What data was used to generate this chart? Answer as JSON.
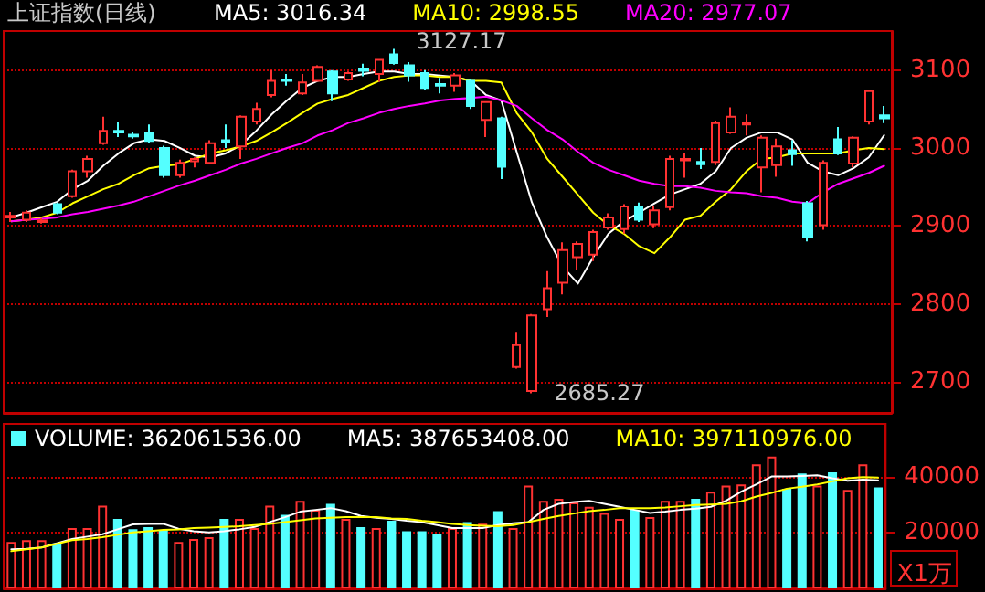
{
  "chart_data": [
    {
      "type": "candlestick",
      "title": "上证指数(日线)",
      "categories": [
        null,
        null,
        null,
        null,
        null,
        null,
        null,
        null,
        null,
        null,
        null,
        null,
        null,
        null,
        null,
        null,
        null,
        null,
        null,
        null,
        null,
        null,
        null,
        null,
        null,
        null,
        null,
        null,
        null,
        null,
        null,
        null,
        null,
        null,
        null,
        null,
        null,
        null,
        null,
        null,
        null,
        null,
        null,
        null,
        null,
        null,
        null,
        null,
        null,
        null,
        null,
        null,
        null,
        null,
        null,
        null,
        null,
        null
      ],
      "ohlc": [
        [
          2911,
          2918,
          2905,
          2913
        ],
        [
          2908,
          2920,
          2905,
          2917
        ],
        [
          2905,
          2910,
          2903,
          2907
        ],
        [
          2928,
          2930,
          2915,
          2917
        ],
        [
          2938,
          2972,
          2936,
          2970
        ],
        [
          2970,
          2990,
          2962,
          2986
        ],
        [
          3006,
          3040,
          3004,
          3022
        ],
        [
          3022,
          3033,
          3014,
          3020
        ],
        [
          3017,
          3020,
          3012,
          3015
        ],
        [
          3020,
          3030,
          3007,
          3009
        ],
        [
          3000,
          3003,
          2962,
          2965
        ],
        [
          2965,
          2985,
          2962,
          2981
        ],
        [
          2983,
          2988,
          2975,
          2986
        ],
        [
          2981,
          3010,
          2980,
          3006
        ],
        [
          3010,
          3030,
          3000,
          3008
        ],
        [
          3002,
          3042,
          2986,
          3040
        ],
        [
          3034,
          3058,
          3030,
          3050
        ],
        [
          3068,
          3100,
          3065,
          3086
        ],
        [
          3088,
          3095,
          3080,
          3086
        ],
        [
          3070,
          3095,
          3068,
          3084
        ],
        [
          3086,
          3106,
          3085,
          3104
        ],
        [
          3098,
          3100,
          3060,
          3070
        ],
        [
          3088,
          3098,
          3086,
          3096
        ],
        [
          3102,
          3108,
          3092,
          3099
        ],
        [
          3095,
          3113,
          3085,
          3113
        ],
        [
          3120,
          3127.17,
          3107,
          3109
        ],
        [
          3106,
          3110,
          3085,
          3093
        ],
        [
          3096,
          3100,
          3075,
          3077
        ],
        [
          3082,
          3090,
          3070,
          3080
        ],
        [
          3080,
          3096,
          3072,
          3093
        ],
        [
          3086,
          3088,
          3050,
          3054
        ],
        [
          3036,
          3060,
          3014,
          3059
        ],
        [
          3038,
          3040,
          2960,
          2976
        ],
        [
          2719,
          2764,
          2717,
          2747
        ],
        [
          2688,
          2787,
          2685.27,
          2785
        ],
        [
          2793,
          2842,
          2783,
          2820
        ],
        [
          2827,
          2879,
          2812,
          2869
        ],
        [
          2860,
          2880,
          2844,
          2877
        ],
        [
          2863,
          2895,
          2855,
          2892
        ],
        [
          2898,
          2916,
          2895,
          2911
        ],
        [
          2896,
          2928,
          2890,
          2925
        ],
        [
          2925,
          2930,
          2905,
          2908
        ],
        [
          2902,
          2925,
          2897,
          2920
        ],
        [
          2924,
          2990,
          2920,
          2986
        ],
        [
          2984,
          2993,
          2962,
          2986
        ],
        [
          2982,
          3000,
          2973,
          2979
        ],
        [
          2982,
          3035,
          2978,
          3032
        ],
        [
          3020,
          3052,
          3018,
          3040
        ],
        [
          3030,
          3043,
          3016,
          3032
        ],
        [
          2975,
          3016,
          2943,
          3013
        ],
        [
          2978,
          3012,
          2963,
          3002
        ],
        [
          2997,
          3010,
          2977,
          2992
        ],
        [
          2929,
          2932,
          2880,
          2885
        ],
        [
          2901,
          2984,
          2895,
          2981
        ],
        [
          3011,
          3027,
          2991,
          2993
        ],
        [
          2980,
          3015,
          2975,
          3013
        ],
        [
          3034,
          3074,
          3030,
          3073
        ],
        [
          3042,
          3054,
          3032,
          3038
        ]
      ],
      "colors": [
        "#ff3232",
        "#ff3232",
        "#ff3232",
        "#54ffff",
        "#ff3232",
        "#ff3232",
        "#ff3232",
        "#54ffff",
        "#54ffff",
        "#54ffff",
        "#54ffff",
        "#ff3232",
        "#ff3232",
        "#ff3232",
        "#54ffff",
        "#ff3232",
        "#ff3232",
        "#ff3232",
        "#54ffff",
        "#ff3232",
        "#ff3232",
        "#54ffff",
        "#ff3232",
        "#54ffff",
        "#ff3232",
        "#54ffff",
        "#54ffff",
        "#54ffff",
        "#54ffff",
        "#ff3232",
        "#54ffff",
        "#ff3232",
        "#54ffff",
        "#ff3232",
        "#ff3232",
        "#ff3232",
        "#ff3232",
        "#ff3232",
        "#ff3232",
        "#ff3232",
        "#ff3232",
        "#54ffff",
        "#ff3232",
        "#ff3232",
        "#ff3232",
        "#54ffff",
        "#ff3232",
        "#ff3232",
        "#ff3232",
        "#ff3232",
        "#ff3232",
        "#54ffff",
        "#54ffff",
        "#ff3232",
        "#54ffff",
        "#ff3232",
        "#ff3232",
        "#54ffff"
      ],
      "series": [
        {
          "type": "line",
          "name": "MA5: 3016.34",
          "color": "#ffffff",
          "values": [
            2911,
            2917,
            2924,
            2931,
            2947,
            2958,
            2977,
            2993,
            3006,
            3011,
            3009,
            3000,
            2990,
            2988,
            2993,
            3004,
            3022,
            3043,
            3061,
            3077,
            3086,
            3091,
            3091,
            3095,
            3098,
            3098,
            3095,
            3095,
            3093,
            3091,
            3086,
            3068,
            3061,
            2995,
            2930,
            2885,
            2848,
            2826,
            2860,
            2890,
            2906,
            2917,
            2929,
            2940,
            2947,
            2954,
            2970,
            3000,
            3013,
            3020,
            3020,
            3011,
            2981,
            2970,
            2965,
            2974,
            2988,
            3016.34
          ]
        },
        {
          "type": "line",
          "name": "MA10: 2998.55",
          "color": "#ffff00",
          "values": [
            2906,
            2908,
            2911,
            2917,
            2929,
            2938,
            2947,
            2954,
            2965,
            2974,
            2977,
            2979,
            2986,
            2993,
            2997,
            3002,
            3009,
            3020,
            3032,
            3045,
            3057,
            3063,
            3068,
            3077,
            3086,
            3091,
            3093,
            3093,
            3091,
            3091,
            3086,
            3086,
            3084,
            3045,
            3020,
            2986,
            2963,
            2940,
            2917,
            2901,
            2890,
            2874,
            2865,
            2885,
            2908,
            2913,
            2931,
            2947,
            2970,
            2986,
            2988,
            2993,
            2993,
            2993,
            2993,
            2997,
            3000,
            2998.55
          ]
        },
        {
          "type": "line",
          "name": "MA20: 2977.07",
          "color": "#ff00ff",
          "values": [
            2906,
            2908,
            2909,
            2911,
            2915,
            2918,
            2922,
            2926,
            2931,
            2938,
            2945,
            2952,
            2958,
            2965,
            2972,
            2980,
            2986,
            2993,
            3000,
            3006,
            3016,
            3023,
            3032,
            3038,
            3045,
            3050,
            3054,
            3057,
            3061,
            3063,
            3064,
            3066,
            3061,
            3054,
            3038,
            3023,
            3011,
            2995,
            2981,
            2972,
            2965,
            2958,
            2954,
            2951,
            2951,
            2949,
            2945,
            2943,
            2942,
            2938,
            2936,
            2931,
            2929,
            2943,
            2954,
            2961,
            2968,
            2977.07
          ]
        }
      ],
      "annotations": [
        "3127.17",
        "2685.27"
      ],
      "ylim": [
        2660,
        3150
      ],
      "yticks": [
        2700,
        2800,
        2900,
        3000,
        3100
      ],
      "grid": "y",
      "legend": "top",
      "marker": "none",
      "tick_labels": "y"
    },
    {
      "type": "bar",
      "categories": [
        null,
        null,
        null,
        null,
        null,
        null,
        null,
        null,
        null,
        null,
        null,
        null,
        null,
        null,
        null,
        null,
        null,
        null,
        null,
        null,
        null,
        null,
        null,
        null,
        null,
        null,
        null,
        null,
        null,
        null,
        null,
        null,
        null,
        null,
        null,
        null,
        null,
        null,
        null,
        null,
        null,
        null,
        null,
        null,
        null,
        null,
        null,
        null,
        null,
        null,
        null,
        null,
        null,
        null,
        null,
        null,
        null,
        null
      ],
      "series": [
        {
          "type": "bar",
          "name": "VOLUME: 362061536.00",
          "colors": [
            "#ff3232",
            "#ff3232",
            "#ff3232",
            "#54ffff",
            "#ff3232",
            "#ff3232",
            "#ff3232",
            "#54ffff",
            "#54ffff",
            "#54ffff",
            "#54ffff",
            "#ff3232",
            "#ff3232",
            "#ff3232",
            "#54ffff",
            "#ff3232",
            "#ff3232",
            "#ff3232",
            "#54ffff",
            "#ff3232",
            "#ff3232",
            "#54ffff",
            "#ff3232",
            "#54ffff",
            "#ff3232",
            "#54ffff",
            "#54ffff",
            "#54ffff",
            "#54ffff",
            "#ff3232",
            "#54ffff",
            "#ff3232",
            "#54ffff",
            "#ff3232",
            "#ff3232",
            "#ff3232",
            "#ff3232",
            "#ff3232",
            "#ff3232",
            "#ff3232",
            "#ff3232",
            "#54ffff",
            "#ff3232",
            "#ff3232",
            "#ff3232",
            "#54ffff",
            "#ff3232",
            "#ff3232",
            "#ff3232",
            "#ff3232",
            "#ff3232",
            "#54ffff",
            "#54ffff",
            "#ff3232",
            "#54ffff",
            "#ff3232",
            "#ff3232",
            "#54ffff"
          ],
          "values": [
            16600,
            17250,
            17250,
            16150,
            21600,
            21600,
            29700,
            24900,
            21200,
            22000,
            21000,
            16600,
            17700,
            18350,
            24900,
            24900,
            21600,
            29700,
            26400,
            31400,
            28150,
            30300,
            24900,
            22000,
            21600,
            24250,
            20500,
            20500,
            19400,
            21600,
            23800,
            23150,
            27700,
            21600,
            36850,
            31400,
            32100,
            30800,
            29250,
            27050,
            24900,
            28150,
            25550,
            31400,
            31400,
            32100,
            34700,
            36850,
            37300,
            44500,
            47300,
            35750,
            41250,
            36850,
            41650,
            35350,
            44500,
            36206
          ]
        },
        {
          "type": "line",
          "name": "MA5: 387653408.00",
          "color": "#ffffff",
          "values": [
            13990,
            14200,
            14640,
            16170,
            17690,
            18560,
            19430,
            21180,
            22920,
            23140,
            23140,
            21390,
            20520,
            20090,
            20520,
            21180,
            22050,
            23790,
            25530,
            27500,
            28150,
            28800,
            27710,
            25970,
            25320,
            24880,
            24230,
            23790,
            22700,
            21610,
            21610,
            21610,
            22700,
            23360,
            23790,
            28150,
            30330,
            30980,
            31420,
            30330,
            29240,
            28150,
            27060,
            27500,
            28150,
            28580,
            29240,
            31420,
            34690,
            37300,
            40130,
            40130,
            40350,
            40570,
            39480,
            38610,
            39040,
            38765
          ]
        },
        {
          "type": "line",
          "name": "MA10: 397110976.00",
          "color": "#ffff00",
          "values": [
            13330,
            13990,
            14640,
            15950,
            17260,
            17690,
            18340,
            19220,
            20090,
            20520,
            20960,
            21180,
            21610,
            21830,
            22050,
            22270,
            22700,
            23140,
            23790,
            24450,
            25100,
            25320,
            25530,
            25530,
            25530,
            25100,
            24880,
            24230,
            23790,
            23140,
            22700,
            22480,
            22270,
            22700,
            23790,
            24880,
            25970,
            26840,
            27710,
            28150,
            28800,
            28800,
            28800,
            29020,
            29460,
            29890,
            30110,
            30330,
            31200,
            32940,
            34250,
            35770,
            36430,
            37300,
            38390,
            39480,
            39920,
            39711
          ]
        }
      ],
      "annotations": [
        "X1万"
      ],
      "ylim": [
        0,
        59000
      ],
      "yticks": [
        20000,
        40000
      ],
      "grid": "y",
      "legend": "top left",
      "marker": "none",
      "tick_labels": "y"
    }
  ]
}
